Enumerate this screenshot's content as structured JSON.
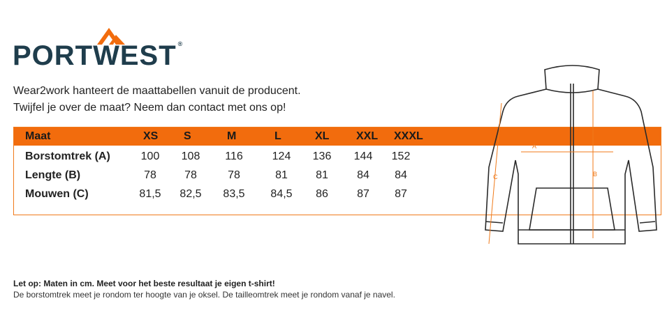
{
  "logo": {
    "text": "PORTWEST",
    "mark": "®"
  },
  "intro": [
    "Wear2work hanteert de maattabellen vanuit de producent.",
    "Twijfel je over de maat? Neem dan contact met ons op!"
  ],
  "table": {
    "header": [
      "Maat",
      "XS",
      "S",
      "M",
      "L",
      "XL",
      "XXL",
      "XXXL"
    ],
    "rows": [
      [
        "Borstomtrek (A)",
        "100",
        "108",
        "116",
        "124",
        "136",
        "144",
        "152"
      ],
      [
        "Lengte (B)",
        "78",
        "78",
        "78",
        "81",
        "81",
        "84",
        "84"
      ],
      [
        "Mouwen (C)",
        "81,5",
        "82,5",
        "83,5",
        "84,5",
        "86",
        "87",
        "87"
      ]
    ]
  },
  "notes": [
    "Let op: Maten in cm. Meet voor het beste resultaat je eigen t-shirt!",
    "De borstomtrek meet je rondom ter hoogte van je oksel. De tailleomtrek meet je rondom vanaf je navel."
  ],
  "diagram": {
    "labels": [
      "A",
      "B",
      "C"
    ]
  }
}
